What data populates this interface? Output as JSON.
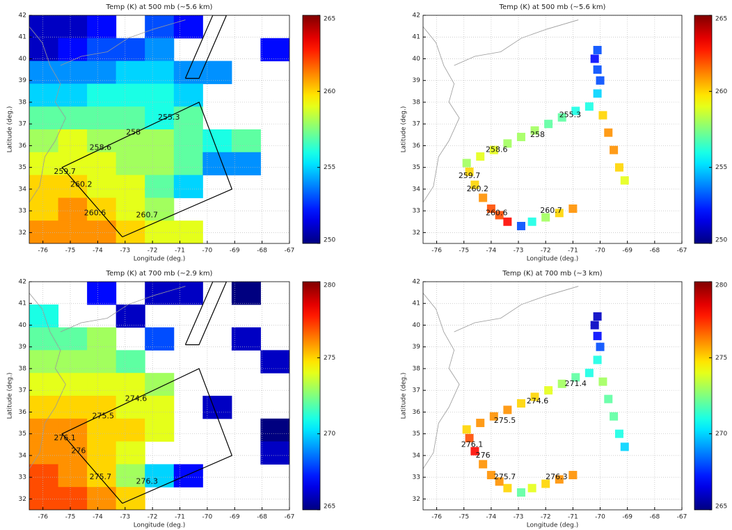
{
  "chart_data": [
    {
      "type": "heatmap",
      "title": "Temp (K) at 500 mb (~5.6 km)",
      "xlabel": "Longitude (deg.)",
      "ylabel": "Latitude (deg.)",
      "xlim": [
        -76.5,
        -67
      ],
      "ylim": [
        31.5,
        42
      ],
      "xticks": [
        -76,
        -75,
        -74,
        -73,
        -72,
        -71,
        -70,
        -69,
        -68,
        -67
      ],
      "yticks": [
        32,
        33,
        34,
        35,
        36,
        37,
        38,
        39,
        40,
        41,
        42
      ],
      "clim": [
        250,
        265
      ],
      "cticks": [
        250,
        255,
        260,
        265
      ],
      "colormap": "jet",
      "grid": true,
      "z": [
        [
          251,
          251,
          252,
          null,
          253,
          252,
          null,
          null,
          null
        ],
        [
          251,
          252,
          253,
          253,
          254,
          null,
          null,
          null,
          252
        ],
        [
          254,
          254,
          254,
          255,
          255,
          254,
          254,
          null,
          null
        ],
        [
          255,
          255,
          256,
          256,
          256,
          255,
          null,
          null,
          null
        ],
        [
          257,
          257,
          257,
          257,
          256,
          257,
          null,
          null,
          null
        ],
        [
          258,
          259,
          258,
          258,
          258,
          257,
          256,
          257,
          null
        ],
        [
          259,
          259,
          259,
          258,
          258,
          257,
          254,
          254,
          null
        ],
        [
          260,
          260,
          259,
          259,
          257,
          255,
          null,
          null,
          null
        ],
        [
          260,
          261,
          260,
          259,
          258,
          null,
          null,
          null,
          null
        ],
        [
          261,
          261,
          261,
          260,
          259,
          259,
          null,
          null,
          null
        ]
      ],
      "tracks": [
        {
          "x": [
            -73.1,
            -75.3,
            -70.3,
            -69.1,
            -73.1
          ],
          "y": [
            31.8,
            35.0,
            38.0,
            34.0,
            31.8
          ]
        },
        {
          "x": [
            -70.8,
            -69.8,
            -69.3,
            -70.3,
            -70.8
          ],
          "y": [
            39.1,
            42.0,
            42.0,
            39.1,
            39.1
          ]
        }
      ],
      "annotations": [
        {
          "text": "259.7",
          "x": -75.2,
          "y": 34.8
        },
        {
          "text": "260.2",
          "x": -74.6,
          "y": 34.2
        },
        {
          "text": "260.6",
          "x": -74.1,
          "y": 32.9
        },
        {
          "text": "260.7",
          "x": -72.2,
          "y": 32.8
        },
        {
          "text": "258.6",
          "x": -73.9,
          "y": 35.9
        },
        {
          "text": "258",
          "x": -72.7,
          "y": 36.6
        },
        {
          "text": "255.3",
          "x": -71.4,
          "y": 37.3
        }
      ]
    },
    {
      "type": "swath",
      "title": "Temp (K) at 500 mb (~5.6 km)",
      "xlabel": "Longitude (deg.)",
      "ylabel": "Latitude (deg.)",
      "xlim": [
        -76.5,
        -67
      ],
      "ylim": [
        31.5,
        42
      ],
      "xticks": [
        -76,
        -75,
        -74,
        -73,
        -72,
        -71,
        -70,
        -69,
        -68,
        -67
      ],
      "yticks": [
        32,
        33,
        34,
        35,
        36,
        37,
        38,
        39,
        40,
        41,
        42
      ],
      "clim": [
        250,
        265
      ],
      "cticks": [
        250,
        255,
        260,
        265
      ],
      "colormap": "jet",
      "grid": true,
      "points": {
        "x": [
          -74.9,
          -74.4,
          -73.9,
          -73.4,
          -72.9,
          -72.4,
          -71.9,
          -71.4,
          -70.9,
          -70.4,
          -70.1,
          -70.0,
          -70.1,
          -70.2,
          -70.1,
          -69.9,
          -69.7,
          -69.5,
          -69.3,
          -69.1,
          -74.8,
          -74.6,
          -74.3,
          -74.0,
          -73.7,
          -73.4,
          -72.9,
          -72.5,
          -72.0,
          -71.5,
          -71.0
        ],
        "y": [
          35.2,
          35.5,
          35.8,
          36.1,
          36.4,
          36.7,
          37.0,
          37.3,
          37.6,
          37.8,
          38.4,
          39.0,
          39.5,
          40.0,
          40.4,
          37.4,
          36.6,
          35.8,
          35.0,
          34.4,
          34.8,
          34.2,
          33.6,
          33.1,
          32.8,
          32.5,
          32.3,
          32.5,
          32.7,
          32.9,
          33.1
        ],
        "values": [
          258,
          259,
          259,
          258,
          258,
          258,
          257,
          257,
          256,
          256,
          255,
          253,
          253,
          252,
          253,
          260,
          261,
          261,
          260,
          259,
          260,
          260,
          261,
          262,
          262,
          263,
          253,
          256,
          258,
          260,
          261
        ]
      },
      "annotations": [
        {
          "text": "259.7",
          "x": -74.8,
          "y": 34.6
        },
        {
          "text": "260.2",
          "x": -74.5,
          "y": 34.0
        },
        {
          "text": "260.6",
          "x": -73.8,
          "y": 32.9
        },
        {
          "text": "260.7",
          "x": -71.8,
          "y": 33.0
        },
        {
          "text": "258.6",
          "x": -73.8,
          "y": 35.8
        },
        {
          "text": "258",
          "x": -72.3,
          "y": 36.5
        },
        {
          "text": "255.3",
          "x": -71.1,
          "y": 37.4
        }
      ]
    },
    {
      "type": "heatmap",
      "title": "Temp (K) at 700 mb (~2.9 km)",
      "xlabel": "Longitude (deg.)",
      "ylabel": "Latitude (deg.)",
      "xlim": [
        -76.5,
        -67
      ],
      "ylim": [
        31.5,
        42
      ],
      "xticks": [
        -76,
        -75,
        -74,
        -73,
        -72,
        -71,
        -70,
        -69,
        -68,
        -67
      ],
      "yticks": [
        32,
        33,
        34,
        35,
        36,
        37,
        38,
        39,
        40,
        41,
        42
      ],
      "clim": [
        265,
        280
      ],
      "cticks": [
        265,
        270,
        275,
        280
      ],
      "colormap": "jet",
      "grid": true,
      "z": [
        [
          null,
          null,
          267,
          null,
          266,
          266,
          null,
          265,
          null
        ],
        [
          271,
          null,
          null,
          266,
          null,
          null,
          null,
          null,
          null
        ],
        [
          272,
          272,
          273,
          null,
          268,
          null,
          null,
          266,
          null
        ],
        [
          273,
          273,
          273,
          272,
          null,
          null,
          null,
          null,
          266
        ],
        [
          274,
          274,
          274,
          274,
          273,
          null,
          null,
          null,
          null
        ],
        [
          275,
          275,
          275,
          274,
          274,
          null,
          266,
          null,
          null
        ],
        [
          276,
          276,
          275,
          275,
          274,
          null,
          null,
          null,
          265
        ],
        [
          276,
          276,
          275,
          274,
          null,
          null,
          null,
          null,
          266
        ],
        [
          277,
          276,
          275,
          273,
          270,
          267,
          null,
          null,
          null
        ],
        [
          277,
          277,
          276,
          275,
          null,
          null,
          null,
          null,
          null
        ]
      ],
      "tracks": [
        {
          "x": [
            -73.1,
            -75.3,
            -70.3,
            -69.1,
            -73.1
          ],
          "y": [
            31.8,
            35.0,
            38.0,
            34.0,
            31.8
          ]
        },
        {
          "x": [
            -70.8,
            -69.8,
            -69.3,
            -70.3,
            -70.8
          ],
          "y": [
            39.1,
            42.0,
            42.0,
            39.1,
            39.1
          ]
        }
      ],
      "annotations": [
        {
          "text": "276.1",
          "x": -75.2,
          "y": 34.8
        },
        {
          "text": "276",
          "x": -74.7,
          "y": 34.2
        },
        {
          "text": "275.7",
          "x": -73.9,
          "y": 33.0
        },
        {
          "text": "276.3",
          "x": -72.2,
          "y": 32.8
        },
        {
          "text": "275.5",
          "x": -73.8,
          "y": 35.8
        },
        {
          "text": "274.6",
          "x": -72.6,
          "y": 36.6
        }
      ]
    },
    {
      "type": "swath",
      "title": "Temp (K) at 700 mb (~3 km)",
      "xlabel": "Longitude (deg.)",
      "ylabel": "Latitude (deg.)",
      "xlim": [
        -76.5,
        -67
      ],
      "ylim": [
        31.5,
        42
      ],
      "xticks": [
        -76,
        -75,
        -74,
        -73,
        -72,
        -71,
        -70,
        -69,
        -68,
        -67
      ],
      "yticks": [
        32,
        33,
        34,
        35,
        36,
        37,
        38,
        39,
        40,
        41,
        42
      ],
      "clim": [
        265,
        280
      ],
      "cticks": [
        265,
        270,
        275,
        280
      ],
      "colormap": "jet",
      "grid": true,
      "points": {
        "x": [
          -74.9,
          -74.4,
          -73.9,
          -73.4,
          -72.9,
          -72.4,
          -71.9,
          -71.4,
          -70.9,
          -70.4,
          -70.1,
          -70.0,
          -70.1,
          -70.2,
          -70.1,
          -69.9,
          -69.7,
          -69.5,
          -69.3,
          -69.1,
          -74.8,
          -74.6,
          -74.3,
          -74.0,
          -73.7,
          -73.4,
          -72.9,
          -72.5,
          -72.0,
          -71.5,
          -71.0
        ],
        "y": [
          35.2,
          35.5,
          35.8,
          36.1,
          36.4,
          36.7,
          37.0,
          37.3,
          37.6,
          37.8,
          38.4,
          39.0,
          39.5,
          40.0,
          40.4,
          37.4,
          36.6,
          35.8,
          35.0,
          34.4,
          34.8,
          34.2,
          33.6,
          33.1,
          32.8,
          32.5,
          32.3,
          32.5,
          32.7,
          32.9,
          33.1
        ],
        "values": [
          275,
          276,
          276,
          276,
          275,
          275,
          274,
          273,
          272,
          271,
          271,
          268,
          267,
          266,
          266,
          273,
          272,
          272,
          271,
          270,
          277,
          278,
          276,
          276,
          276,
          275,
          272,
          274,
          275,
          276,
          276
        ]
      },
      "annotations": [
        {
          "text": "276.1",
          "x": -74.7,
          "y": 34.5
        },
        {
          "text": "276",
          "x": -74.3,
          "y": 34.0
        },
        {
          "text": "275.7",
          "x": -73.5,
          "y": 33.0
        },
        {
          "text": "276.3",
          "x": -71.6,
          "y": 33.0
        },
        {
          "text": "275.5",
          "x": -73.5,
          "y": 35.6
        },
        {
          "text": "274.6",
          "x": -72.3,
          "y": 36.5
        },
        {
          "text": "271.4",
          "x": -70.9,
          "y": 37.3
        }
      ]
    }
  ]
}
